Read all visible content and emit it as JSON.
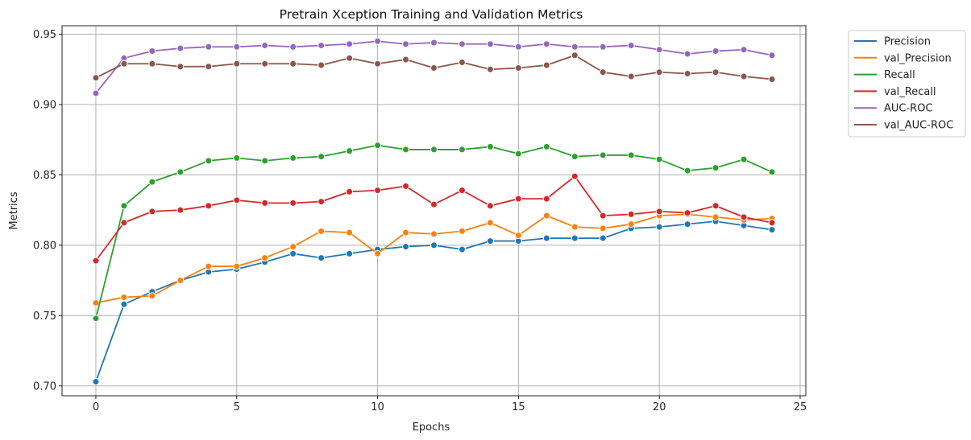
{
  "chart_data": {
    "type": "line",
    "title": "Pretrain Xception Training and Validation Metrics",
    "xlabel": "Epochs",
    "ylabel": "Metrics",
    "xlim": [
      -1.2,
      25.2
    ],
    "ylim": [
      0.693,
      0.956
    ],
    "xticks": [
      0,
      5,
      10,
      15,
      20,
      25
    ],
    "yticks": [
      0.7,
      0.75,
      0.8,
      0.85,
      0.9,
      0.95
    ],
    "ytick_labels": [
      "0.70",
      "0.75",
      "0.80",
      "0.85",
      "0.90",
      "0.95"
    ],
    "grid": true,
    "legend_position": "outside-top-right",
    "x": [
      0,
      1,
      2,
      3,
      4,
      5,
      6,
      7,
      8,
      9,
      10,
      11,
      12,
      13,
      14,
      15,
      16,
      17,
      18,
      19,
      20,
      21,
      22,
      23,
      24
    ],
    "series": [
      {
        "name": "Precision",
        "color": "#1f77b4",
        "values": [
          0.703,
          0.758,
          0.767,
          0.775,
          0.781,
          0.783,
          0.788,
          0.794,
          0.791,
          0.794,
          0.797,
          0.799,
          0.8,
          0.797,
          0.803,
          0.803,
          0.805,
          0.805,
          0.805,
          0.812,
          0.813,
          0.815,
          0.817,
          0.814,
          0.811
        ]
      },
      {
        "name": "val_Precision",
        "color": "#ff7f0e",
        "values": [
          0.759,
          0.763,
          0.764,
          0.775,
          0.785,
          0.785,
          0.791,
          0.799,
          0.81,
          0.809,
          0.794,
          0.809,
          0.808,
          0.81,
          0.816,
          0.807,
          0.821,
          0.813,
          0.812,
          0.815,
          0.821,
          0.822,
          0.82,
          0.818,
          0.819
        ]
      },
      {
        "name": "Recall",
        "color": "#2ca02c",
        "values": [
          0.748,
          0.828,
          0.845,
          0.852,
          0.86,
          0.862,
          0.86,
          0.862,
          0.863,
          0.867,
          0.871,
          0.868,
          0.868,
          0.868,
          0.87,
          0.865,
          0.87,
          0.863,
          0.864,
          0.864,
          0.861,
          0.853,
          0.855,
          0.861,
          0.852
        ]
      },
      {
        "name": "val_Recall",
        "color": "#d62728",
        "values": [
          0.789,
          0.816,
          0.824,
          0.825,
          0.828,
          0.832,
          0.83,
          0.83,
          0.831,
          0.838,
          0.839,
          0.842,
          0.829,
          0.839,
          0.828,
          0.833,
          0.833,
          0.849,
          0.821,
          0.822,
          0.824,
          0.823,
          0.828,
          0.82,
          0.816
        ]
      },
      {
        "name": "AUC-ROC",
        "color": "#9467bd",
        "values": [
          0.908,
          0.933,
          0.938,
          0.94,
          0.941,
          0.941,
          0.942,
          0.941,
          0.942,
          0.943,
          0.945,
          0.943,
          0.944,
          0.943,
          0.943,
          0.941,
          0.943,
          0.941,
          0.941,
          0.942,
          0.939,
          0.936,
          0.938,
          0.939,
          0.935
        ]
      },
      {
        "name": "val_AUC-ROC",
        "color": "#8c564b",
        "values": [
          0.919,
          0.929,
          0.929,
          0.927,
          0.927,
          0.929,
          0.929,
          0.929,
          0.928,
          0.933,
          0.929,
          0.932,
          0.926,
          0.93,
          0.925,
          0.926,
          0.928,
          0.935,
          0.923,
          0.92,
          0.923,
          0.922,
          0.923,
          0.92,
          0.918
        ]
      }
    ]
  }
}
